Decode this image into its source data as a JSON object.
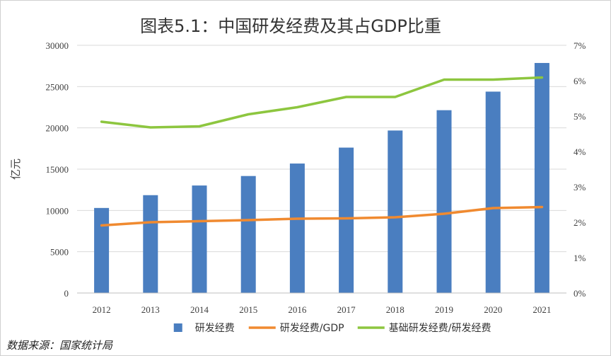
{
  "chart_data": {
    "type": "bar",
    "title": "图表5.1：中国研发经费及其占GDP比重",
    "categories": [
      "2012",
      "2013",
      "2014",
      "2015",
      "2016",
      "2017",
      "2018",
      "2019",
      "2020",
      "2021"
    ],
    "ylabel": "亿元",
    "ylim": [
      0,
      30000
    ],
    "y_ticks": [
      "0",
      "5000",
      "10000",
      "15000",
      "20000",
      "25000",
      "30000"
    ],
    "y2lim": [
      0,
      7
    ],
    "y2_ticks": [
      "0%",
      "1%",
      "2%",
      "3%",
      "4%",
      "5%",
      "6%",
      "7%"
    ],
    "grid": true,
    "legend_position": "bottom",
    "series": [
      {
        "name": "研发经费",
        "type": "bar",
        "axis": "left",
        "color": "#4A7EC0",
        "values": [
          10300,
          11850,
          13020,
          14170,
          15680,
          17610,
          19680,
          22140,
          24390,
          27860
        ]
      },
      {
        "name": "研发经费/GDP",
        "type": "line",
        "axis": "right",
        "color": "#F08A30",
        "values": [
          1.91,
          2.0,
          2.03,
          2.06,
          2.1,
          2.11,
          2.14,
          2.24,
          2.4,
          2.43
        ]
      },
      {
        "name": "基础研发经费/研发经费",
        "type": "line",
        "axis": "right",
        "color": "#8DC63F",
        "values": [
          4.84,
          4.68,
          4.71,
          5.05,
          5.25,
          5.54,
          5.54,
          6.03,
          6.03,
          6.09
        ]
      }
    ]
  },
  "source_note": "数据来源：国家统计局"
}
